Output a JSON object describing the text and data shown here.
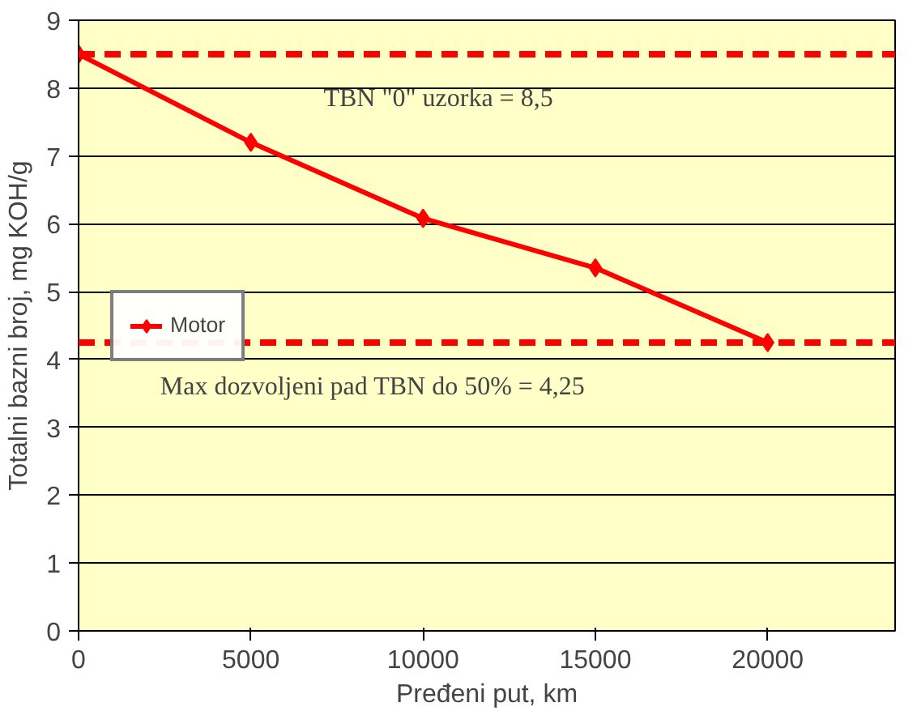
{
  "chart_data": {
    "type": "line",
    "xlabel": "Pređeni put, km",
    "ylabel": "Totalni bazni broj, mg KOH/g",
    "x": [
      0,
      5000,
      10000,
      15000,
      20000
    ],
    "series": [
      {
        "name": "Motor",
        "color": "#ff0000",
        "values": [
          8.5,
          7.2,
          6.08,
          5.35,
          4.25
        ]
      }
    ],
    "xlim": [
      0,
      23700
    ],
    "xticks": [
      0,
      5000,
      10000,
      15000,
      20000
    ],
    "ylim": [
      0,
      9
    ],
    "yticks": [
      0,
      1,
      2,
      3,
      4,
      5,
      6,
      7,
      8,
      9
    ],
    "ref_lines": [
      {
        "axis": "y",
        "value": 8.5,
        "label": "TBN \"0\" uzorka = 8,5",
        "color": "#ff0000",
        "line_style": "dashed"
      },
      {
        "axis": "y",
        "value": 4.25,
        "label": "Max dozvoljeni pad TBN do 50% = 4,25",
        "color": "#ff0000",
        "line_style": "dashed"
      }
    ],
    "grid": "y",
    "legend": "left",
    "marker": "diamond",
    "line_style": "solid"
  }
}
